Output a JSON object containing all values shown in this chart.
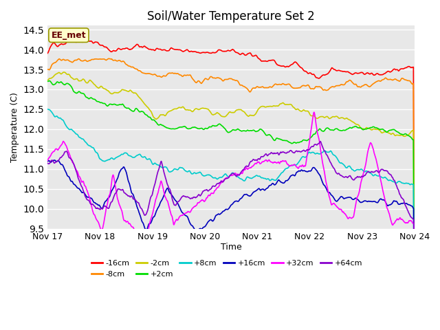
{
  "title": "Soil/Water Temperature Set 2",
  "xlabel": "Time",
  "ylabel": "Temperature (C)",
  "ylim": [
    9.5,
    14.6
  ],
  "xlim": [
    0,
    168
  ],
  "annotation": "EE_met",
  "background_color": "#e8e8e8",
  "grid_color": "white",
  "xtick_labels": [
    "Nov 17",
    "Nov 18",
    "Nov 19",
    "Nov 20",
    "Nov 21",
    "Nov 22",
    "Nov 23",
    "Nov 24"
  ],
  "xtick_positions": [
    0,
    24,
    48,
    72,
    96,
    120,
    144,
    168
  ],
  "ytick_values": [
    9.5,
    10.0,
    10.5,
    11.0,
    11.5,
    12.0,
    12.5,
    13.0,
    13.5,
    14.0,
    14.5
  ],
  "series_order": [
    "-16cm",
    "-8cm",
    "-2cm",
    "+2cm",
    "+8cm",
    "+16cm",
    "+32cm",
    "+64cm"
  ],
  "series": {
    "-16cm": {
      "color": "#ff0000",
      "linewidth": 1.2
    },
    "-8cm": {
      "color": "#ff8800",
      "linewidth": 1.2
    },
    "-2cm": {
      "color": "#cccc00",
      "linewidth": 1.2
    },
    "+2cm": {
      "color": "#00dd00",
      "linewidth": 1.2
    },
    "+8cm": {
      "color": "#00cccc",
      "linewidth": 1.2
    },
    "+16cm": {
      "color": "#0000bb",
      "linewidth": 1.2
    },
    "+32cm": {
      "color": "#ff00ff",
      "linewidth": 1.2
    },
    "+64cm": {
      "color": "#8800cc",
      "linewidth": 1.2
    }
  },
  "legend_row1": [
    "-16cm",
    "-8cm",
    "-2cm",
    "+2cm",
    "+8cm",
    "+16cm"
  ],
  "legend_row2": [
    "+32cm",
    "+64cm"
  ]
}
